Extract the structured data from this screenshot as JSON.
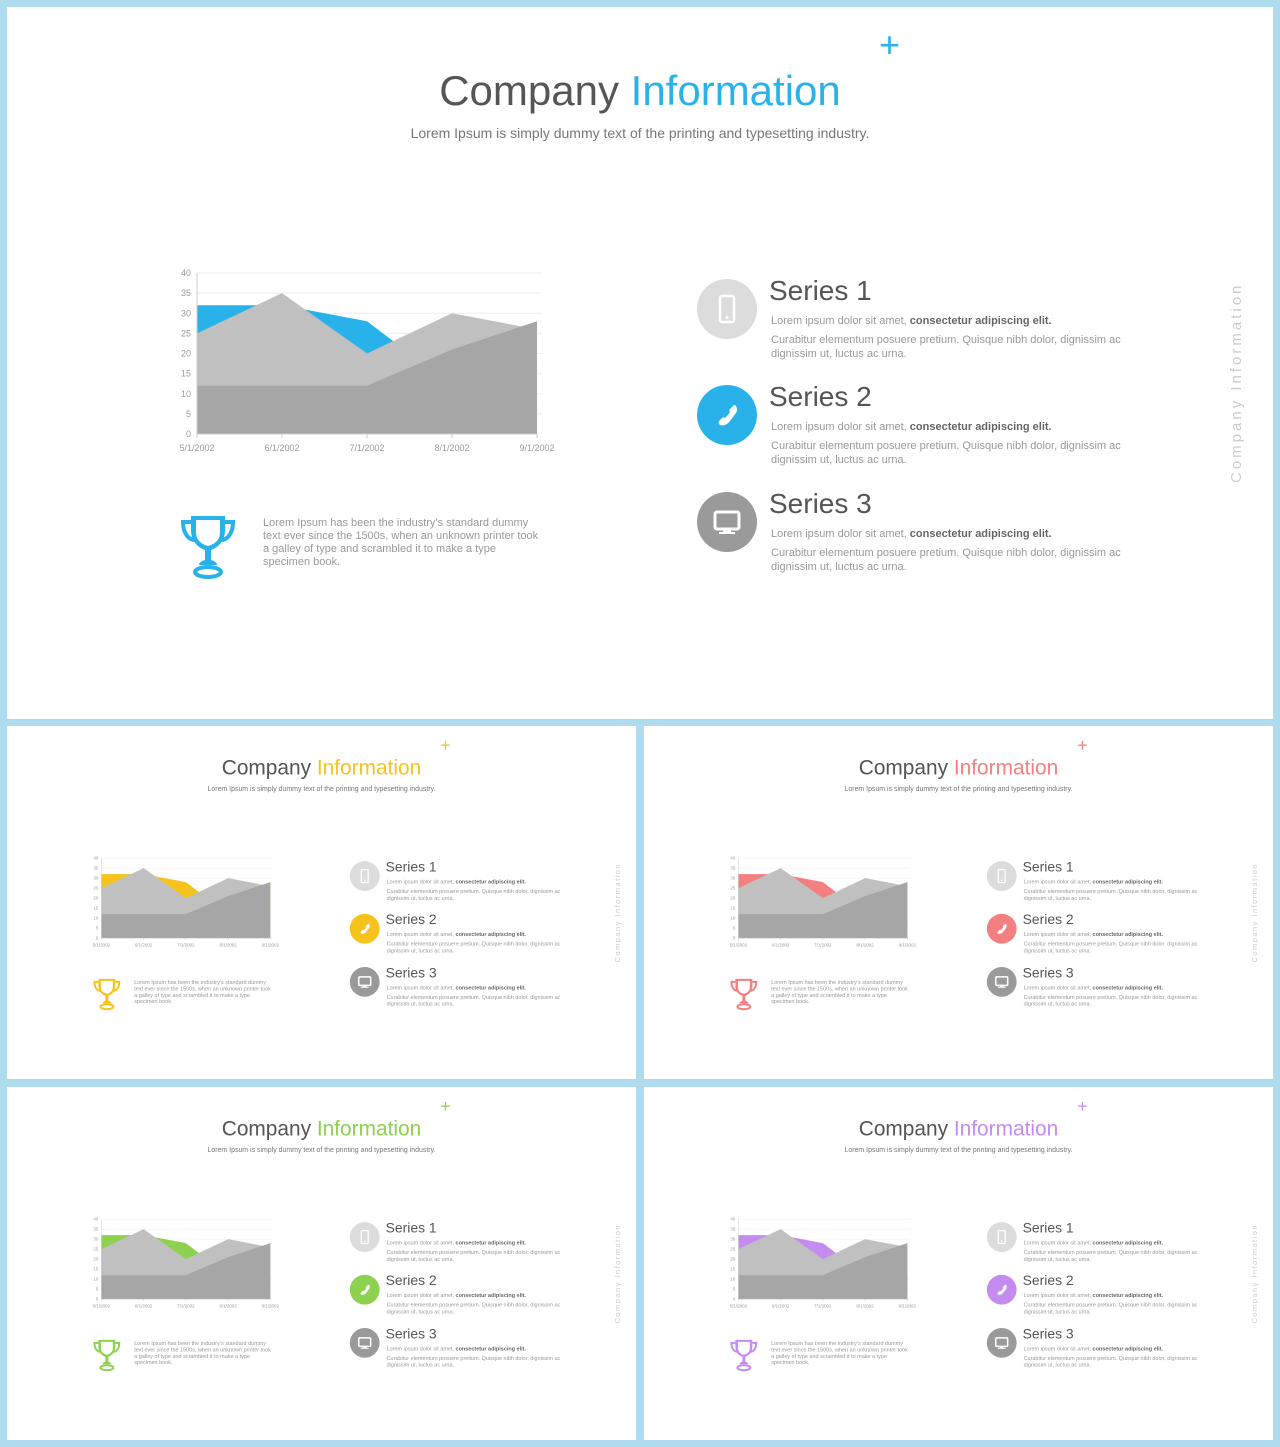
{
  "title_main": "Company",
  "title_accent": "Information",
  "plus_sign": "+",
  "subtitle": "Lorem Ipsum is simply dummy text of the printing and typesetting industry.",
  "trophy_text": "Lorem Ipsum has been the industry’s standard dummy text ever since the 1500s, when an unknown printer took a galley of type and scrambled it to make a type specimen book.",
  "vertical_label": "Company Information",
  "series": [
    {
      "name": "Series 1",
      "line1_plain": "Lorem ipsum dolor sit amet,",
      "line1_bold": "consectetur adipiscing elit.",
      "line2": "Curabitur elementum posuere pretium. Quisque nibh dolor, dignissim ac dignissim ut, luctus ac urna.",
      "icon": "phone-icon"
    },
    {
      "name": "Series 2",
      "line1_plain": "Lorem ipsum dolor sit amet,",
      "line1_bold": "consectetur adipiscing elit.",
      "line2": "Curabitur elementum posuere pretium. Quisque nibh dolor, dignissim ac dignissim ut, luctus ac urna.",
      "icon": "telephone-icon"
    },
    {
      "name": "Series 3",
      "line1_plain": "Lorem ipsum dolor sit amet,",
      "line1_bold": "consectetur adipiscing elit.",
      "line2": "Curabitur elementum posuere pretium. Quisque nibh dolor, dignissim ac dignissim ut, luctus ac urna.",
      "icon": "monitor-icon"
    }
  ],
  "variants": [
    {
      "accent": "#29b2ea"
    },
    {
      "accent": "#f6c31c"
    },
    {
      "accent": "#f37f81"
    },
    {
      "accent": "#8ed04f"
    },
    {
      "accent": "#c58cf0"
    }
  ],
  "chart_data": {
    "type": "area",
    "x": [
      "5/1/2002",
      "6/1/2002",
      "7/1/2002",
      "8/1/2002",
      "9/1/2002"
    ],
    "y_ticks": [
      0,
      5,
      10,
      15,
      20,
      25,
      30,
      35,
      40
    ],
    "ylim": [
      0,
      40
    ],
    "series": [
      {
        "values": [
          32,
          32,
          28,
          12,
          28
        ],
        "color": "accent"
      },
      {
        "values": [
          25,
          35,
          20,
          30,
          26
        ],
        "color": "#c0c0c0"
      },
      {
        "values": [
          12,
          12,
          12,
          21,
          28
        ],
        "color": "#a6a6a6"
      }
    ]
  }
}
